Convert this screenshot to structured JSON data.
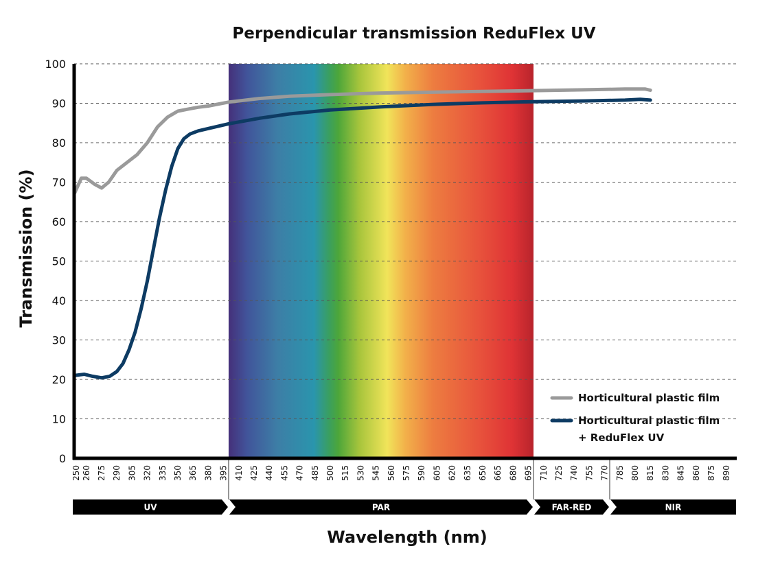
{
  "chart_data": {
    "type": "line",
    "title": "Perpendicular transmission ReduFlex UV",
    "xlabel": "Wavelength (nm)",
    "ylabel": "Transmission (%)",
    "xlim": [
      248,
      900
    ],
    "ylim": [
      0,
      100
    ],
    "yticks": [
      0,
      10,
      20,
      30,
      40,
      50,
      60,
      70,
      80,
      90,
      100
    ],
    "xticks": [
      250,
      260,
      275,
      290,
      305,
      320,
      335,
      350,
      365,
      380,
      395,
      410,
      425,
      440,
      455,
      470,
      485,
      500,
      515,
      530,
      545,
      560,
      575,
      590,
      605,
      620,
      635,
      650,
      665,
      680,
      695,
      710,
      725,
      740,
      755,
      770,
      785,
      800,
      815,
      830,
      845,
      860,
      875,
      890
    ],
    "grid": "horizontal dashed",
    "spectrum_band": [
      400,
      700
    ],
    "bands": [
      {
        "label": "UV",
        "from": 248,
        "to": 400
      },
      {
        "label": "PAR",
        "from": 400,
        "to": 700
      },
      {
        "label": "FAR-RED",
        "from": 700,
        "to": 775
      },
      {
        "label": "NIR",
        "from": 775,
        "to": 900
      }
    ],
    "legend_position": "bottom-right",
    "series": [
      {
        "name": "Horticultural plastic film",
        "color": "#9a9a9a",
        "points": [
          [
            248,
            67
          ],
          [
            255,
            71
          ],
          [
            260,
            71
          ],
          [
            268,
            69.5
          ],
          [
            275,
            68.5
          ],
          [
            282,
            70
          ],
          [
            290,
            73
          ],
          [
            300,
            75
          ],
          [
            310,
            77
          ],
          [
            320,
            80
          ],
          [
            330,
            84
          ],
          [
            340,
            86.5
          ],
          [
            350,
            88
          ],
          [
            360,
            88.5
          ],
          [
            370,
            89
          ],
          [
            380,
            89.3
          ],
          [
            400,
            90.3
          ],
          [
            430,
            91.2
          ],
          [
            460,
            91.8
          ],
          [
            500,
            92.2
          ],
          [
            550,
            92.6
          ],
          [
            600,
            92.8
          ],
          [
            650,
            93
          ],
          [
            700,
            93.2
          ],
          [
            750,
            93.4
          ],
          [
            790,
            93.6
          ],
          [
            810,
            93.6
          ],
          [
            815,
            93.3
          ]
        ]
      },
      {
        "name": "Horticultural plastic film\n+ ReduFlex UV",
        "color": "#0d3b63",
        "points": [
          [
            248,
            21
          ],
          [
            258,
            21.3
          ],
          [
            266,
            20.8
          ],
          [
            275,
            20.4
          ],
          [
            283,
            20.8
          ],
          [
            290,
            22
          ],
          [
            296,
            24
          ],
          [
            302,
            27.5
          ],
          [
            308,
            32
          ],
          [
            314,
            38
          ],
          [
            320,
            45
          ],
          [
            326,
            53
          ],
          [
            332,
            61
          ],
          [
            338,
            68
          ],
          [
            344,
            74
          ],
          [
            350,
            78.5
          ],
          [
            356,
            81
          ],
          [
            362,
            82.2
          ],
          [
            370,
            83
          ],
          [
            380,
            83.6
          ],
          [
            400,
            84.8
          ],
          [
            430,
            86.2
          ],
          [
            460,
            87.3
          ],
          [
            500,
            88.3
          ],
          [
            550,
            89.1
          ],
          [
            600,
            89.7
          ],
          [
            650,
            90.1
          ],
          [
            700,
            90.4
          ],
          [
            750,
            90.6
          ],
          [
            790,
            90.8
          ],
          [
            805,
            91
          ],
          [
            815,
            90.8
          ]
        ]
      }
    ]
  }
}
